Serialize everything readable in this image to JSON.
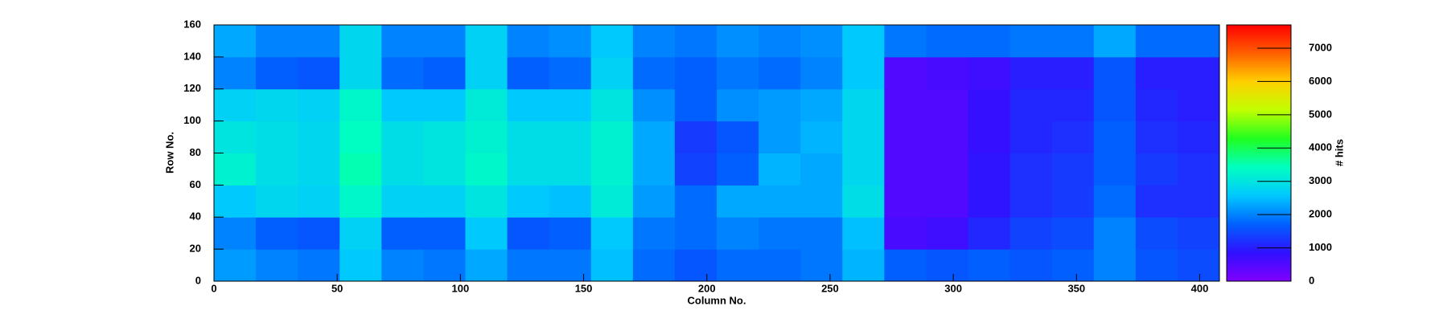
{
  "chart_data": {
    "type": "heatmap",
    "x_title": "Column No.",
    "y_title": "Row No.",
    "z_title": "# hits",
    "x_edges": [
      0,
      17,
      34,
      51,
      68,
      85,
      102,
      119,
      136,
      153,
      170,
      187,
      204,
      221,
      238,
      255,
      272,
      289,
      306,
      323,
      340,
      357,
      374,
      391,
      408
    ],
    "y_edges": [
      0,
      20,
      40,
      60,
      80,
      100,
      120,
      140,
      160
    ],
    "z": [
      [
        2200,
        2000,
        1900,
        2600,
        2000,
        1900,
        2300,
        1900,
        1900,
        2500,
        1800,
        1600,
        1800,
        1800,
        1900,
        2400,
        1700,
        1600,
        1700,
        1600,
        1700,
        2000,
        1600,
        1500
      ],
      [
        2000,
        1700,
        1600,
        2700,
        1700,
        1700,
        2600,
        1600,
        1700,
        2600,
        1900,
        1800,
        2000,
        1900,
        1900,
        2500,
        600,
        700,
        1100,
        1400,
        1500,
        2000,
        1500,
        1400
      ],
      [
        2600,
        2800,
        2700,
        3300,
        2700,
        2700,
        3000,
        2600,
        2500,
        3100,
        2200,
        1800,
        2300,
        2300,
        2300,
        2900,
        500,
        500,
        900,
        1200,
        1300,
        1800,
        1200,
        1200
      ],
      [
        3200,
        2900,
        2800,
        3500,
        2900,
        3000,
        3300,
        2900,
        2900,
        3200,
        2300,
        1400,
        1700,
        2400,
        2300,
        2800,
        500,
        500,
        900,
        1200,
        1300,
        1700,
        1300,
        1200
      ],
      [
        3000,
        2900,
        2800,
        3400,
        2900,
        3000,
        3200,
        2900,
        2900,
        3200,
        2300,
        1300,
        1600,
        2200,
        2400,
        2800,
        500,
        500,
        800,
        1100,
        1200,
        1700,
        1200,
        1100
      ],
      [
        2700,
        2800,
        2700,
        3300,
        2600,
        2600,
        3100,
        2600,
        2600,
        3000,
        2100,
        1700,
        2100,
        2200,
        2300,
        2800,
        500,
        500,
        800,
        1100,
        1100,
        1600,
        1100,
        1000
      ],
      [
        2000,
        1700,
        1600,
        2800,
        1800,
        1700,
        2700,
        1700,
        1800,
        2700,
        1800,
        1700,
        1900,
        1800,
        2000,
        2600,
        500,
        600,
        700,
        1000,
        1000,
        1600,
        1000,
        1000
      ],
      [
        2300,
        2000,
        2000,
        2800,
        2000,
        2000,
        2700,
        2000,
        2100,
        2600,
        2000,
        1900,
        2100,
        2000,
        2100,
        2600,
        1900,
        1800,
        1800,
        1900,
        1900,
        2300,
        1800,
        1800
      ]
    ],
    "xlim": [
      0,
      408
    ],
    "ylim": [
      0,
      160
    ],
    "zlim": [
      0,
      7700
    ],
    "xticks": [
      0,
      50,
      100,
      150,
      200,
      250,
      300,
      350,
      400
    ],
    "yticks": [
      0,
      20,
      40,
      60,
      80,
      100,
      120,
      140,
      160
    ],
    "zticks": [
      0,
      1000,
      2000,
      3000,
      4000,
      5000,
      6000,
      7000
    ],
    "colormap": [
      "#8000ff",
      "#3010ff",
      "#0060ff",
      "#00c8ff",
      "#00ffc0",
      "#20ff20",
      "#c0ff00",
      "#ffd000",
      "#ff6000",
      "#ff0000"
    ]
  }
}
